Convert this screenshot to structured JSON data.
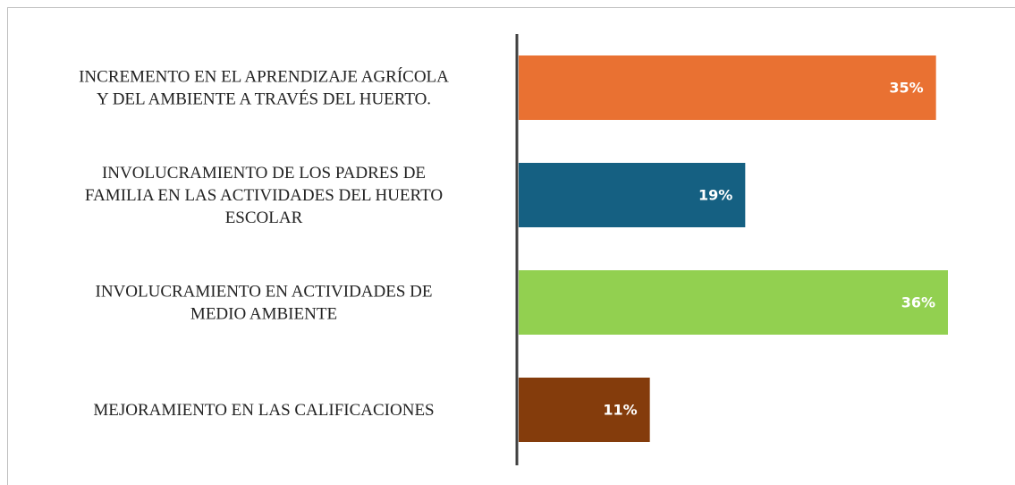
{
  "chart_data": {
    "type": "bar",
    "orientation": "horizontal",
    "categories": [
      [
        "INCREMENTO EN EL APRENDIZAJE AGRÍCOLA",
        "Y DEL AMBIENTE A TRAVÉS DEL HUERTO."
      ],
      [
        "INVOLUCRAMIENTO DE LOS PADRES DE",
        "FAMILIA EN LAS ACTIVIDADES DEL HUERTO",
        "ESCOLAR"
      ],
      [
        "INVOLUCRAMIENTO EN ACTIVIDADES DE",
        "MEDIO AMBIENTE"
      ],
      [
        "MEJORAMIENTO EN LAS CALIFICACIONES"
      ]
    ],
    "values": [
      35,
      19,
      36,
      11
    ],
    "value_labels": [
      "35%",
      "19%",
      "36%",
      "11%"
    ],
    "colors": [
      "#e97132",
      "#156082",
      "#92d050",
      "#843c0c"
    ]
  }
}
